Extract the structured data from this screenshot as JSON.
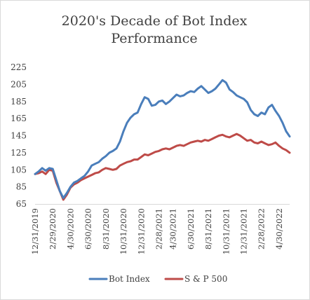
{
  "chart_data": {
    "type": "line",
    "title_line1": "2020's Decade of Bot Index",
    "title_line2": "Performance",
    "xlabel": "",
    "ylabel": "",
    "ylim": [
      65,
      225
    ],
    "yticks": [
      65,
      85,
      105,
      125,
      145,
      165,
      185,
      205,
      225
    ],
    "grid": false,
    "legend_position": "bottom",
    "x_tick_labels": [
      "12/31/2019",
      "2/29/2020",
      "4/30/2020",
      "6/30/2020",
      "8/31/2020",
      "10/31/2020",
      "12/31/2020",
      "2/28/2021",
      "4/30/2021",
      "6/30/2021",
      "8/31/2021",
      "10/31/2021",
      "12/31/2021",
      "2/28/2022",
      "4/30/2022"
    ],
    "series": [
      {
        "name": "Bot Index",
        "color": "#4a7ebb",
        "values": [
          100,
          103,
          107,
          104,
          107,
          106,
          93,
          80,
          72,
          78,
          85,
          90,
          92,
          95,
          98,
          103,
          110,
          112,
          114,
          118,
          121,
          125,
          127,
          130,
          138,
          150,
          160,
          166,
          170,
          172,
          182,
          190,
          188,
          180,
          181,
          185,
          186,
          182,
          185,
          189,
          193,
          191,
          192,
          195,
          197,
          196,
          200,
          203,
          199,
          195,
          197,
          200,
          205,
          210,
          207,
          199,
          196,
          192,
          190,
          188,
          184,
          175,
          170,
          168,
          172,
          170,
          178,
          181,
          174,
          168,
          160,
          150,
          144
        ]
      },
      {
        "name": "S & P 500",
        "color": "#be4b48",
        "values": [
          100,
          101,
          103,
          100,
          105,
          104,
          90,
          80,
          70,
          76,
          84,
          88,
          90,
          93,
          95,
          97,
          99,
          101,
          102,
          105,
          107,
          106,
          105,
          106,
          110,
          112,
          114,
          115,
          117,
          117,
          120,
          123,
          122,
          124,
          126,
          127,
          129,
          130,
          129,
          131,
          133,
          134,
          133,
          135,
          137,
          138,
          139,
          138,
          140,
          139,
          141,
          143,
          145,
          146,
          144,
          143,
          145,
          147,
          145,
          142,
          139,
          140,
          137,
          136,
          138,
          136,
          134,
          135,
          137,
          133,
          130,
          128,
          125
        ]
      }
    ]
  }
}
